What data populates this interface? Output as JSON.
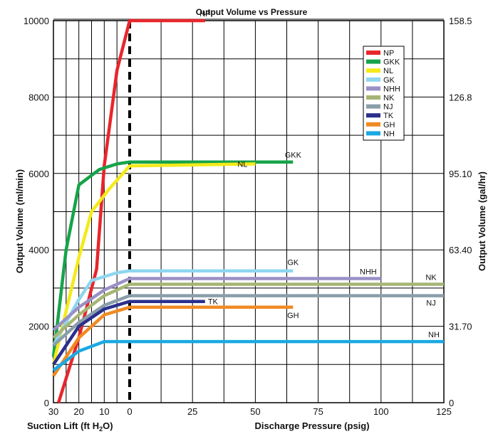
{
  "chart_data": {
    "type": "line",
    "title": "Output Volume vs Pressure",
    "y_left_label": "Output Volume (ml/min)",
    "y_right_label": "Output Volume (gal/hr)",
    "x_left_label_prefix": "Suction Lift (ft H",
    "x_left_label_sub": "2",
    "x_left_label_suffix": "O)",
    "x_right_label": "Discharge Pressure (psig)",
    "ylim": [
      0,
      10000
    ],
    "suction_ticks": [
      "30",
      "20",
      "10",
      "0"
    ],
    "discharge_ticks": [
      "25",
      "50",
      "75",
      "100",
      "125"
    ],
    "y_left_ticks": [
      "0",
      "2000",
      "4000",
      "6000",
      "8000",
      "10000"
    ],
    "y_right_ticks": [
      "0",
      "31.70",
      "63.40",
      "95.10",
      "126.8",
      "158.5"
    ],
    "legend_position": "top-right",
    "grid": true,
    "series": [
      {
        "name": "NP",
        "color": "#e8262b",
        "label": "NP",
        "points": [
          [
            -28,
            0
          ],
          [
            -20,
            1700
          ],
          [
            -13,
            3500
          ],
          [
            -10,
            6200
          ],
          [
            -5,
            8700
          ],
          [
            0,
            10000
          ],
          [
            30,
            10000
          ]
        ]
      },
      {
        "name": "GKK",
        "color": "#16a34a",
        "label": "GKK",
        "points": [
          [
            -30,
            1200
          ],
          [
            -25,
            4000
          ],
          [
            -20,
            5700
          ],
          [
            -12,
            6100
          ],
          [
            -5,
            6250
          ],
          [
            0,
            6300
          ],
          [
            65,
            6300
          ]
        ]
      },
      {
        "name": "NL",
        "color": "#f4ea1a",
        "label": "NL",
        "points": [
          [
            -30,
            1000
          ],
          [
            -20,
            3800
          ],
          [
            -15,
            5000
          ],
          [
            -8,
            5600
          ],
          [
            0,
            6200
          ],
          [
            50,
            6250
          ]
        ]
      },
      {
        "name": "GK",
        "color": "#8fd6ee",
        "label": "GK",
        "points": [
          [
            -30,
            1500
          ],
          [
            -20,
            2700
          ],
          [
            -15,
            3200
          ],
          [
            -5,
            3400
          ],
          [
            0,
            3450
          ],
          [
            65,
            3450
          ]
        ]
      },
      {
        "name": "NHH",
        "color": "#9a90c6",
        "label": "NHH",
        "points": [
          [
            -30,
            1900
          ],
          [
            -20,
            2500
          ],
          [
            -10,
            2950
          ],
          [
            0,
            3250
          ],
          [
            100,
            3250
          ]
        ]
      },
      {
        "name": "NK",
        "color": "#a6b574",
        "label": "NK",
        "points": [
          [
            -30,
            1700
          ],
          [
            -20,
            2300
          ],
          [
            -10,
            2800
          ],
          [
            0,
            3100
          ],
          [
            125,
            3100
          ]
        ]
      },
      {
        "name": "NJ",
        "color": "#8a9eaa",
        "label": "NJ",
        "points": [
          [
            -30,
            1500
          ],
          [
            -20,
            2100
          ],
          [
            -10,
            2550
          ],
          [
            0,
            2800
          ],
          [
            125,
            2800
          ]
        ]
      },
      {
        "name": "TK",
        "color": "#2b2f8c",
        "label": "TK",
        "points": [
          [
            -30,
            1000
          ],
          [
            -20,
            2000
          ],
          [
            -10,
            2450
          ],
          [
            0,
            2650
          ],
          [
            30,
            2650
          ]
        ]
      },
      {
        "name": "GH",
        "color": "#f08a24",
        "label": "GH",
        "points": [
          [
            -30,
            700
          ],
          [
            -20,
            1700
          ],
          [
            -10,
            2300
          ],
          [
            0,
            2500
          ],
          [
            65,
            2500
          ]
        ]
      },
      {
        "name": "NH",
        "color": "#1ba9e1",
        "label": "NH",
        "points": [
          [
            -30,
            850
          ],
          [
            -20,
            1350
          ],
          [
            -10,
            1600
          ],
          [
            0,
            1600
          ],
          [
            125,
            1600
          ]
        ]
      }
    ]
  }
}
